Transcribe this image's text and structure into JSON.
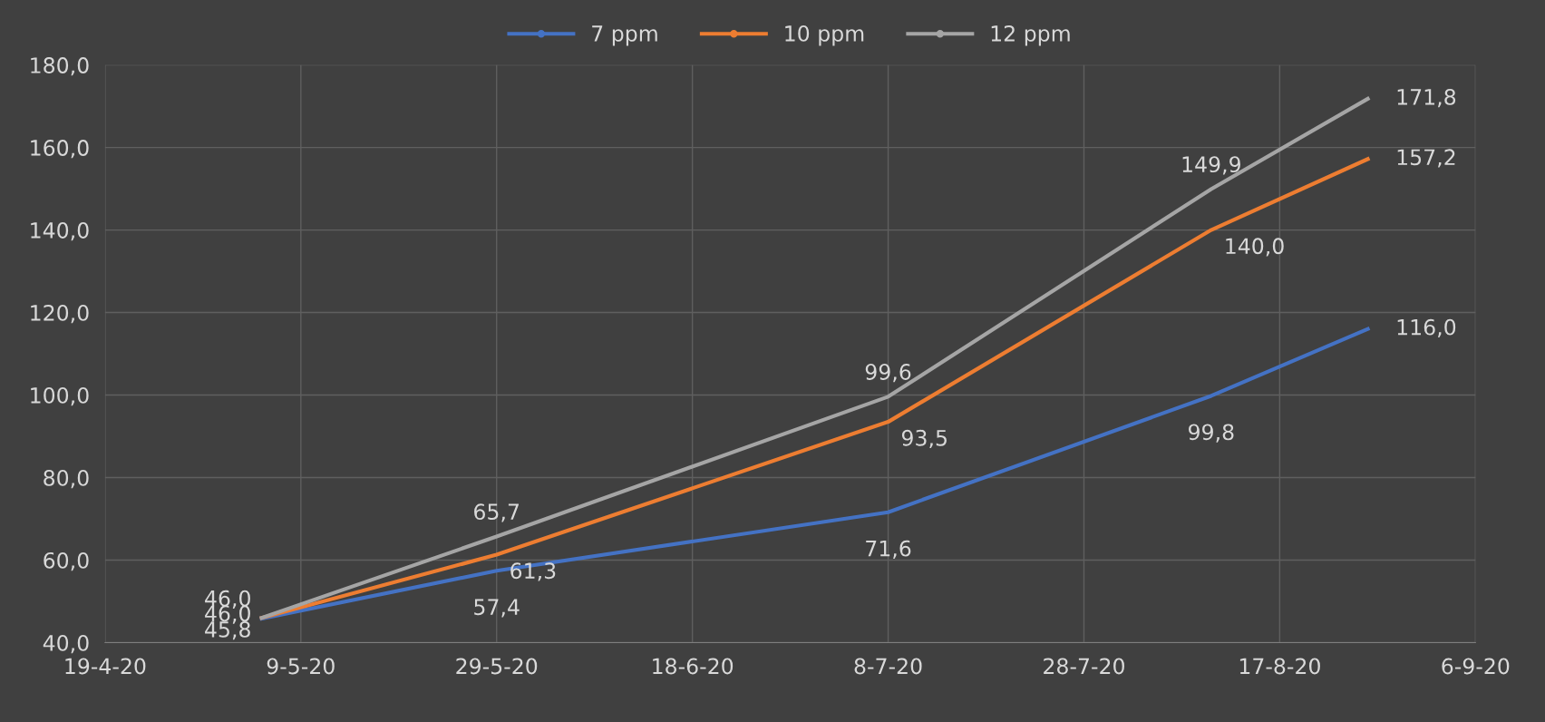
{
  "chart_data": {
    "type": "line",
    "x": [
      "2020-05-05",
      "2020-05-29",
      "2020-07-08",
      "2020-08-10",
      "2020-08-26"
    ],
    "series": [
      {
        "name": "7 ppm",
        "color": "#4472c4",
        "values": [
          45.8,
          57.4,
          71.6,
          99.8,
          116.0
        ],
        "value_labels": [
          "45,8",
          "57,4",
          "71,6",
          "99,8",
          "116,0"
        ]
      },
      {
        "name": "10 ppm",
        "color": "#ed7d31",
        "values": [
          46.0,
          61.3,
          93.5,
          140.0,
          157.2
        ],
        "value_labels": [
          "46,0",
          "61,3",
          "93,5",
          "140,0",
          "157,2"
        ]
      },
      {
        "name": "12 ppm",
        "color": "#a5a5a5",
        "values": [
          46.0,
          65.7,
          99.6,
          149.9,
          171.8
        ],
        "value_labels": [
          "46,0",
          "65,7",
          "99,6",
          "149,9",
          "171,8"
        ]
      }
    ],
    "xlim": [
      "2020-04-19",
      "2020-09-06"
    ],
    "xticks": [
      {
        "value": "2020-04-19",
        "label": "19-4-20"
      },
      {
        "value": "2020-05-09",
        "label": "9-5-20"
      },
      {
        "value": "2020-05-29",
        "label": "29-5-20"
      },
      {
        "value": "2020-06-18",
        "label": "18-6-20"
      },
      {
        "value": "2020-07-08",
        "label": "8-7-20"
      },
      {
        "value": "2020-07-28",
        "label": "28-7-20"
      },
      {
        "value": "2020-08-17",
        "label": "17-8-20"
      },
      {
        "value": "2020-09-06",
        "label": "6-9-20"
      }
    ],
    "ylim": [
      40,
      180
    ],
    "yticks": [
      {
        "value": 40,
        "label": "40,0"
      },
      {
        "value": 60,
        "label": "60,0"
      },
      {
        "value": 80,
        "label": "80,0"
      },
      {
        "value": 100,
        "label": "100,0"
      },
      {
        "value": 120,
        "label": "120,0"
      },
      {
        "value": 140,
        "label": "140,0"
      },
      {
        "value": 160,
        "label": "160,0"
      },
      {
        "value": 180,
        "label": "180,0"
      }
    ],
    "grid": true,
    "legend": "top",
    "marker": "none",
    "line_style": "solid"
  }
}
